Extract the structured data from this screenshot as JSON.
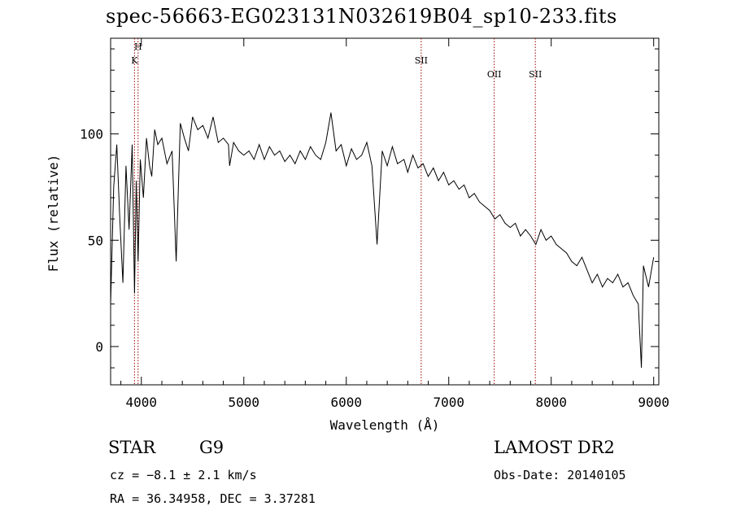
{
  "title": "spec-56663-EG023131N032619B04_sp10-233.fits",
  "info": {
    "class": "STAR",
    "subclass": "G9",
    "survey": "LAMOST DR2",
    "cz": "cz = −8.1 ± 2.1 km/s",
    "obs_date": "Obs-Date: 20140105",
    "coords": "RA =  36.34958, DEC =    3.37281"
  },
  "chart_data": {
    "type": "line",
    "title": "spec-56663-EG023131N032619B04_sp10-233.fits",
    "xlabel": "Wavelength (Å)",
    "ylabel": "Flux (relative)",
    "xlim": [
      3700,
      9050
    ],
    "ylim": [
      -18,
      145
    ],
    "x_ticks": [
      4000,
      5000,
      6000,
      7000,
      8000,
      9000
    ],
    "y_ticks": [
      0,
      50,
      100
    ],
    "grid": false,
    "series": [
      {
        "color": "#000000",
        "x": [
          3700,
          3730,
          3760,
          3790,
          3820,
          3850,
          3880,
          3910,
          3933,
          3950,
          3968,
          3990,
          4020,
          4050,
          4080,
          4102,
          4130,
          4160,
          4200,
          4250,
          4300,
          4340,
          4380,
          4420,
          4460,
          4500,
          4550,
          4600,
          4650,
          4700,
          4750,
          4800,
          4850,
          4861,
          4900,
          4950,
          5000,
          5050,
          5100,
          5150,
          5200,
          5250,
          5300,
          5350,
          5400,
          5450,
          5500,
          5550,
          5600,
          5650,
          5700,
          5750,
          5800,
          5850,
          5900,
          5950,
          6000,
          6050,
          6100,
          6150,
          6200,
          6250,
          6300,
          6350,
          6400,
          6450,
          6500,
          6563,
          6600,
          6650,
          6700,
          6750,
          6800,
          6850,
          6900,
          6950,
          7000,
          7050,
          7100,
          7150,
          7200,
          7250,
          7300,
          7350,
          7400,
          7450,
          7500,
          7550,
          7600,
          7650,
          7700,
          7750,
          7800,
          7850,
          7900,
          7950,
          8000,
          8050,
          8100,
          8150,
          8200,
          8250,
          8300,
          8350,
          8400,
          8450,
          8500,
          8550,
          8600,
          8650,
          8700,
          8750,
          8800,
          8850,
          8880,
          8900,
          8950,
          9000
        ],
        "y": [
          20,
          75,
          95,
          60,
          30,
          85,
          55,
          95,
          25,
          78,
          40,
          88,
          70,
          98,
          85,
          80,
          102,
          95,
          98,
          86,
          92,
          40,
          105,
          98,
          92,
          108,
          102,
          104,
          98,
          108,
          96,
          98,
          95,
          85,
          96,
          92,
          90,
          92,
          88,
          95,
          88,
          94,
          90,
          92,
          87,
          90,
          86,
          92,
          88,
          94,
          90,
          88,
          96,
          110,
          92,
          95,
          85,
          93,
          88,
          90,
          96,
          85,
          48,
          92,
          85,
          94,
          86,
          88,
          82,
          90,
          84,
          86,
          80,
          84,
          78,
          82,
          76,
          78,
          74,
          76,
          70,
          72,
          68,
          66,
          64,
          60,
          62,
          58,
          56,
          58,
          52,
          55,
          52,
          48,
          55,
          50,
          52,
          48,
          46,
          44,
          40,
          38,
          42,
          36,
          30,
          34,
          28,
          32,
          30,
          34,
          28,
          30,
          24,
          20,
          -10,
          38,
          28,
          42
        ]
      }
    ],
    "annotations": [
      {
        "x": 3933,
        "label": "K"
      },
      {
        "x": 3968,
        "label": "H"
      },
      {
        "x": 6731,
        "label": "SII"
      },
      {
        "x": 7444,
        "label": "OII"
      },
      {
        "x": 7845,
        "label": "SII"
      }
    ],
    "annotation_color": "#990000"
  }
}
